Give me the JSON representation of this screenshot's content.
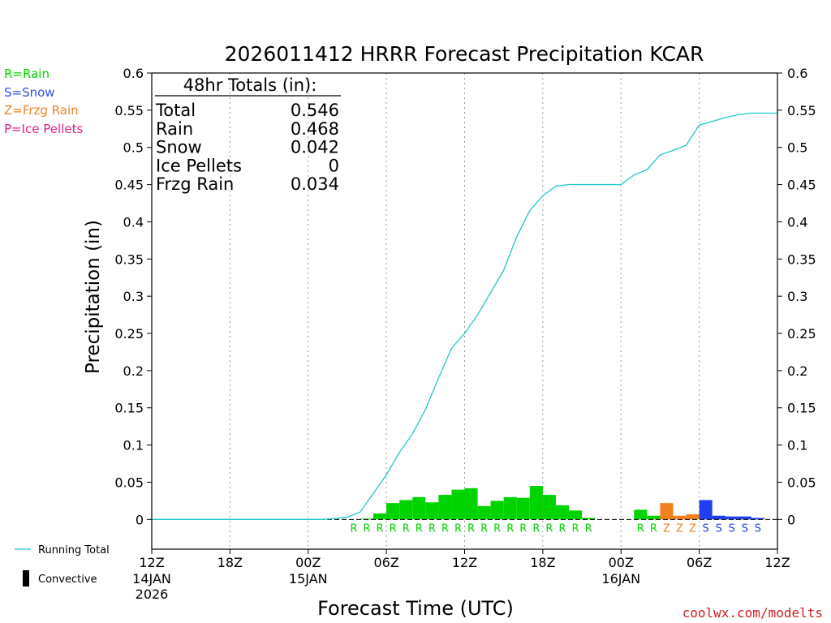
{
  "colors": {
    "rain": "#00d400",
    "snow": "#1f3ff0",
    "frzg_rain": "#f08020",
    "ice_pellets": "#e0208c",
    "running_total": "#20c8c8",
    "credit": "#cc2020"
  },
  "legend": {
    "ptypes": [
      {
        "label": "R=Rain",
        "color": "#00d400"
      },
      {
        "label": "S=Snow",
        "color": "#3050e8"
      },
      {
        "label": "Z=Frzg Rain",
        "color": "#f08020"
      },
      {
        "label": "P=Ice Pellets",
        "color": "#e0208c"
      }
    ],
    "running_total": "Running Total",
    "convective": "Convective"
  },
  "totals_box": {
    "title": "48hr Totals (in):",
    "rows": [
      {
        "label": "Total",
        "value": "0.546"
      },
      {
        "label": "Rain",
        "value": "0.468"
      },
      {
        "label": "Snow",
        "value": "0.042"
      },
      {
        "label": "Ice Pellets",
        "value": "0"
      },
      {
        "label": "Frzg Rain",
        "value": "0.034"
      }
    ]
  },
  "credit": "coolwx.com/modelts",
  "chart_data": {
    "type": "bar",
    "title": "2026011412 HRRR Forecast Precipitation KCAR",
    "xlabel": "Forecast Time (UTC)",
    "ylabel": "Precipitation (in)",
    "xlim": [
      0,
      48
    ],
    "ylim": [
      -0.04,
      0.6
    ],
    "grid": "vertical dotted",
    "yticks": [
      {
        "value": 0,
        "label": "0"
      },
      {
        "value": 0.05,
        "label": "0.05"
      },
      {
        "value": 0.1,
        "label": "0.1"
      },
      {
        "value": 0.15,
        "label": "0.15"
      },
      {
        "value": 0.2,
        "label": "0.2"
      },
      {
        "value": 0.25,
        "label": "0.25"
      },
      {
        "value": 0.3,
        "label": "0.3"
      },
      {
        "value": 0.35,
        "label": "0.35"
      },
      {
        "value": 0.4,
        "label": "0.4"
      },
      {
        "value": 0.45,
        "label": "0.45"
      },
      {
        "value": 0.5,
        "label": "0.5"
      },
      {
        "value": 0.55,
        "label": "0.55"
      },
      {
        "value": 0.6,
        "label": "0.6"
      }
    ],
    "xticks": [
      {
        "hour": 0,
        "label": "12Z",
        "date": "14JAN",
        "year": "2026"
      },
      {
        "hour": 6,
        "label": "18Z"
      },
      {
        "hour": 12,
        "label": "00Z",
        "date": "15JAN"
      },
      {
        "hour": 18,
        "label": "06Z"
      },
      {
        "hour": 24,
        "label": "12Z"
      },
      {
        "hour": 30,
        "label": "18Z"
      },
      {
        "hour": 36,
        "label": "00Z",
        "date": "16JAN"
      },
      {
        "hour": 42,
        "label": "06Z"
      },
      {
        "hour": 48,
        "label": "12Z"
      }
    ],
    "hourly_precip": [
      {
        "hour": 17,
        "value": 0.001,
        "type": "R"
      },
      {
        "hour": 18,
        "value": 0.008,
        "type": "R"
      },
      {
        "hour": 19,
        "value": 0.022,
        "type": "R"
      },
      {
        "hour": 20,
        "value": 0.026,
        "type": "R"
      },
      {
        "hour": 21,
        "value": 0.03,
        "type": "R"
      },
      {
        "hour": 22,
        "value": 0.023,
        "type": "R"
      },
      {
        "hour": 23,
        "value": 0.033,
        "type": "R"
      },
      {
        "hour": 24,
        "value": 0.04,
        "type": "R"
      },
      {
        "hour": 25,
        "value": 0.042,
        "type": "R"
      },
      {
        "hour": 26,
        "value": 0.018,
        "type": "R"
      },
      {
        "hour": 27,
        "value": 0.025,
        "type": "R"
      },
      {
        "hour": 28,
        "value": 0.03,
        "type": "R"
      },
      {
        "hour": 29,
        "value": 0.029,
        "type": "R"
      },
      {
        "hour": 30,
        "value": 0.045,
        "type": "R"
      },
      {
        "hour": 31,
        "value": 0.033,
        "type": "R"
      },
      {
        "hour": 32,
        "value": 0.019,
        "type": "R"
      },
      {
        "hour": 33,
        "value": 0.012,
        "type": "R"
      },
      {
        "hour": 34,
        "value": 0.002,
        "type": "R"
      },
      {
        "hour": 38,
        "value": 0.013,
        "type": "R"
      },
      {
        "hour": 39,
        "value": 0.005,
        "type": "R"
      },
      {
        "hour": 40,
        "value": 0.022,
        "type": "Z"
      },
      {
        "hour": 41,
        "value": 0.005,
        "type": "Z"
      },
      {
        "hour": 42,
        "value": 0.007,
        "type": "Z"
      },
      {
        "hour": 43,
        "value": 0.026,
        "type": "S"
      },
      {
        "hour": 44,
        "value": 0.005,
        "type": "S"
      },
      {
        "hour": 45,
        "value": 0.004,
        "type": "S"
      },
      {
        "hour": 46,
        "value": 0.004,
        "type": "S"
      },
      {
        "hour": 47,
        "value": 0.002,
        "type": "S"
      }
    ],
    "ptype_labels": [
      {
        "hour": 15,
        "type": "R"
      },
      {
        "hour": 16,
        "type": "R"
      },
      {
        "hour": 17,
        "type": "R"
      },
      {
        "hour": 18,
        "type": "R"
      },
      {
        "hour": 19,
        "type": "R"
      },
      {
        "hour": 20,
        "type": "R"
      },
      {
        "hour": 21,
        "type": "R"
      },
      {
        "hour": 22,
        "type": "R"
      },
      {
        "hour": 23,
        "type": "R"
      },
      {
        "hour": 24,
        "type": "R"
      },
      {
        "hour": 25,
        "type": "R"
      },
      {
        "hour": 26,
        "type": "R"
      },
      {
        "hour": 27,
        "type": "R"
      },
      {
        "hour": 28,
        "type": "R"
      },
      {
        "hour": 29,
        "type": "R"
      },
      {
        "hour": 30,
        "type": "R"
      },
      {
        "hour": 31,
        "type": "R"
      },
      {
        "hour": 32,
        "type": "R"
      },
      {
        "hour": 33,
        "type": "R"
      },
      {
        "hour": 37,
        "type": "R"
      },
      {
        "hour": 38,
        "type": "R"
      },
      {
        "hour": 39,
        "type": "Z"
      },
      {
        "hour": 40,
        "type": "Z"
      },
      {
        "hour": 41,
        "type": "Z"
      },
      {
        "hour": 42,
        "type": "S"
      },
      {
        "hour": 43,
        "type": "S"
      },
      {
        "hour": 44,
        "type": "S"
      },
      {
        "hour": 45,
        "type": "S"
      },
      {
        "hour": 46,
        "type": "S"
      }
    ],
    "running_total": {
      "name": "Running Total",
      "hours": [
        0,
        13,
        14,
        15,
        16,
        17,
        18,
        19,
        20,
        21,
        22,
        23,
        24,
        25,
        26,
        27,
        28,
        29,
        30,
        31,
        32,
        33,
        34,
        35,
        36,
        37,
        38,
        39,
        40,
        41,
        42,
        43,
        44,
        45,
        46,
        47,
        48
      ],
      "values": [
        0,
        0,
        0.001,
        0.003,
        0.01,
        0.035,
        0.06,
        0.09,
        0.115,
        0.148,
        0.19,
        0.23,
        0.25,
        0.275,
        0.305,
        0.335,
        0.38,
        0.415,
        0.435,
        0.448,
        0.45,
        0.45,
        0.45,
        0.45,
        0.45,
        0.463,
        0.47,
        0.49,
        0.496,
        0.503,
        0.53,
        0.535,
        0.54,
        0.544,
        0.546,
        0.546,
        0.546
      ]
    }
  }
}
